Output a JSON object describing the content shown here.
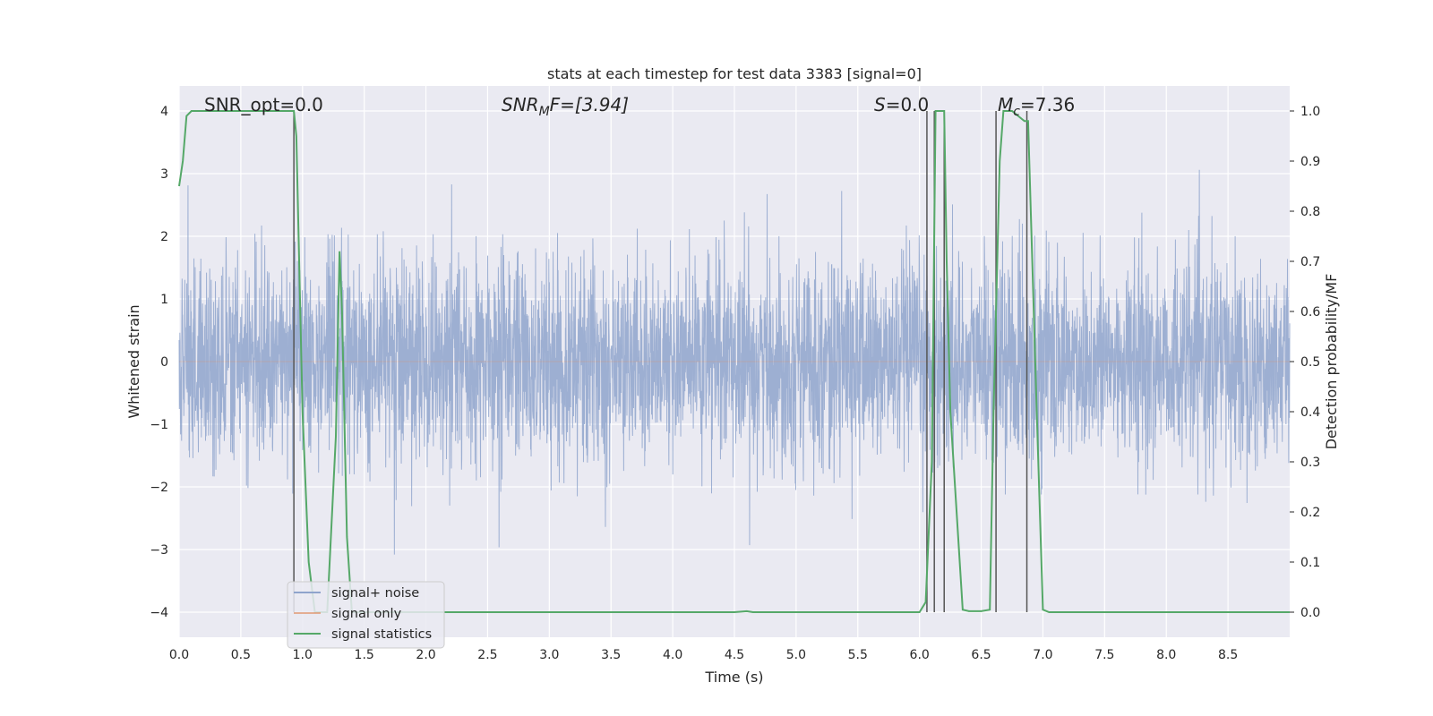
{
  "chart_data": {
    "type": "line",
    "title": "stats at each timestep for test data 3383 [signal=0]",
    "xlabel": "Time (s)",
    "ylabel": "Whitened strain",
    "y2label": "Detection probability/MF",
    "xlim": [
      0.0,
      9.0
    ],
    "ylim": [
      -4.4,
      4.4
    ],
    "y2lim": [
      -0.05,
      1.05
    ],
    "x_ticks": [
      "0.0",
      "0.5",
      "1.0",
      "1.5",
      "2.0",
      "2.5",
      "3.0",
      "3.5",
      "4.0",
      "4.5",
      "5.0",
      "5.5",
      "6.0",
      "6.5",
      "7.0",
      "7.5",
      "8.0",
      "8.5"
    ],
    "y_ticks": [
      "−4",
      "−3",
      "−2",
      "−1",
      "0",
      "1",
      "2",
      "3",
      "4"
    ],
    "y2_ticks": [
      "0.0",
      "0.1",
      "0.2",
      "0.3",
      "0.4",
      "0.5",
      "0.6",
      "0.7",
      "0.8",
      "0.9",
      "1.0"
    ],
    "grid": true,
    "legend_position": "lower-left",
    "annotations": [
      "SNR_opt=0.0",
      "SNR",
      "M",
      "F=[3.94]",
      "S",
      "=0.0",
      "M",
      "c",
      "=7.36"
    ],
    "series": [
      {
        "name": "signal+ noise",
        "color": "#8fa4cc",
        "noise_sigma": 0.8,
        "x_range": [
          0.0,
          9.0
        ]
      },
      {
        "name": "signal only",
        "color": "#dd8452",
        "x": [
          0.0,
          9.0
        ],
        "y": [
          0.0,
          0.0
        ]
      },
      {
        "name": "signal statistics",
        "color": "#55a868",
        "axis": "right",
        "x": [
          0.0,
          0.03,
          0.06,
          0.1,
          0.2,
          0.5,
          0.8,
          0.93,
          0.95,
          1.0,
          1.05,
          1.1,
          1.2,
          1.27,
          1.3,
          1.32,
          1.36,
          1.4,
          1.45,
          1.5,
          2.0,
          3.0,
          4.0,
          4.5,
          4.6,
          4.65,
          4.7,
          5.0,
          5.5,
          6.0,
          6.05,
          6.1,
          6.13,
          6.2,
          6.22,
          6.25,
          6.35,
          6.4,
          6.5,
          6.57,
          6.6,
          6.65,
          6.68,
          6.7,
          6.75,
          6.8,
          6.85,
          6.88,
          6.95,
          7.0,
          7.05,
          7.5,
          8.0,
          8.5,
          9.0
        ],
        "y": [
          0.85,
          0.9,
          0.99,
          1.0,
          1.0,
          1.0,
          1.0,
          1.0,
          0.95,
          0.4,
          0.1,
          0.0,
          0.0,
          0.35,
          0.72,
          0.6,
          0.15,
          0.0,
          0.0,
          0.0,
          0.0,
          0.0,
          0.0,
          0.0,
          0.002,
          0.0,
          0.0,
          0.0,
          0.0,
          0.0,
          0.02,
          0.3,
          1.0,
          1.0,
          0.7,
          0.4,
          0.005,
          0.002,
          0.002,
          0.005,
          0.4,
          0.9,
          1.0,
          1.0,
          1.0,
          0.99,
          0.98,
          0.98,
          0.4,
          0.005,
          0.0,
          0.0,
          0.0,
          0.0,
          0.0
        ]
      }
    ],
    "vertical_lines": [
      0.93,
      6.06,
      6.12,
      6.2,
      6.62,
      6.87
    ],
    "vertical_line_color": "#555555"
  }
}
